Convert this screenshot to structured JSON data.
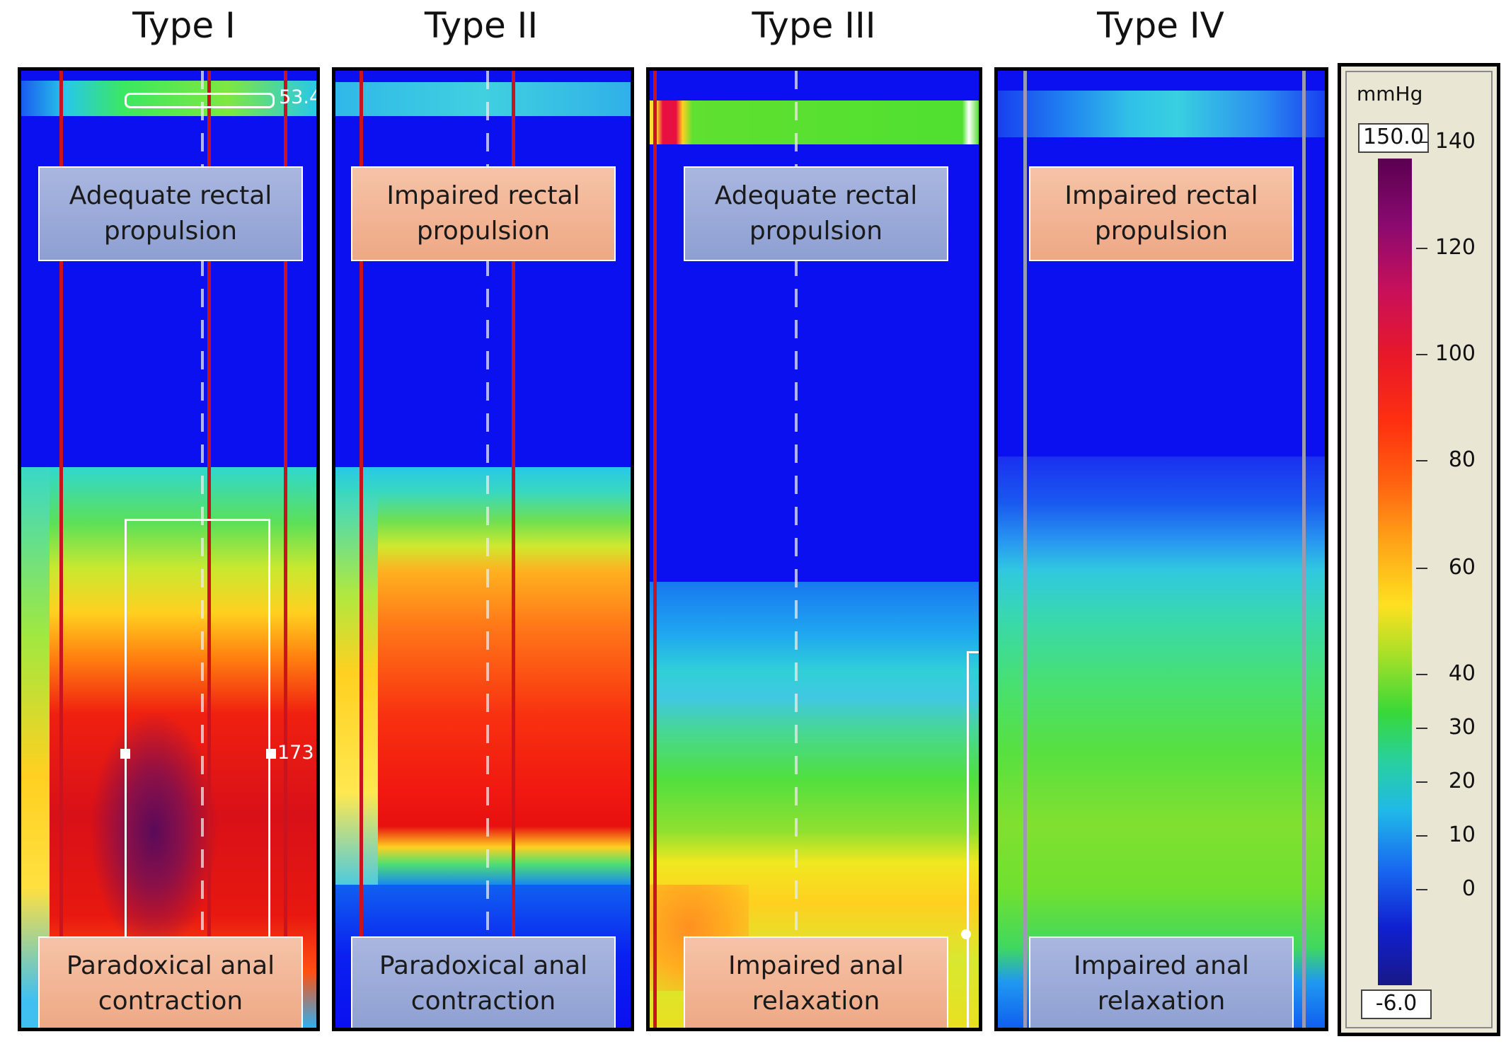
{
  "titles": [
    "Type I",
    "Type II",
    "Type III",
    "Type IV"
  ],
  "panels": [
    {
      "top_label": "Adequate rectal\npropulsion",
      "top_color": "blue",
      "bottom_label": "Paradoxical anal\ncontraction",
      "bottom_color": "salmon",
      "marker_top": "53.4",
      "marker_mid": "173"
    },
    {
      "top_label": "Impaired rectal\npropulsion",
      "top_color": "salmon",
      "bottom_label": "Paradoxical anal\ncontraction",
      "bottom_color": "blue"
    },
    {
      "top_label": "Adequate rectal\npropulsion",
      "top_color": "blue",
      "bottom_label": "Impaired anal\nrelaxation",
      "bottom_color": "salmon"
    },
    {
      "top_label": "Impaired rectal\npropulsion",
      "top_color": "salmon",
      "bottom_label": "Impaired anal\nrelaxation",
      "bottom_color": "blue"
    }
  ],
  "colorbar": {
    "unit": "mmHg",
    "max_value": "150.0",
    "min_value": "-6.0",
    "ticks": [
      "140",
      "120",
      "100",
      "80",
      "60",
      "40",
      "30",
      "20",
      "10",
      "0"
    ]
  },
  "colors": {
    "background_blue": "#0a10f0",
    "label_blue": "#98a8d8",
    "label_salmon": "#f2b595"
  }
}
